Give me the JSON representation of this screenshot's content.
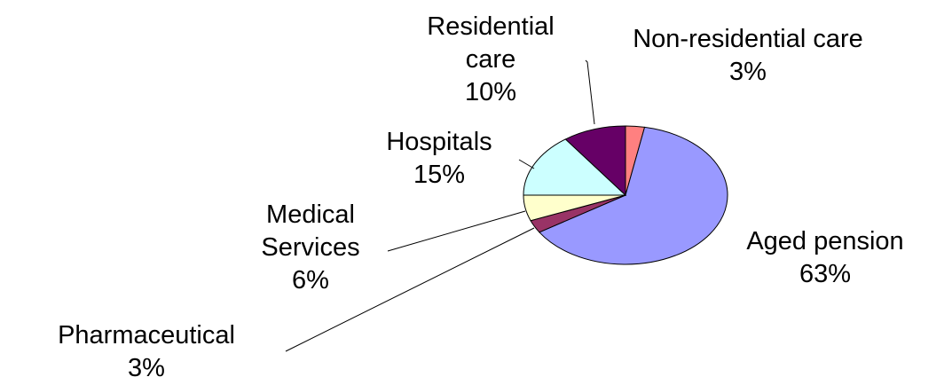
{
  "chart_data": {
    "type": "pie",
    "categories": [
      "Non-residential care",
      "Aged pension",
      "Pharmaceutical",
      "Medical Services",
      "Hospitals",
      "Residential care"
    ],
    "values": [
      3,
      63,
      3,
      6,
      15,
      10
    ],
    "value_labels": [
      "3%",
      "63%",
      "3%",
      "6%",
      "15%",
      "10%"
    ],
    "colors": [
      "#ff8080",
      "#9999ff",
      "#993366",
      "#ffffcc",
      "#ccffff",
      "#660066"
    ]
  }
}
